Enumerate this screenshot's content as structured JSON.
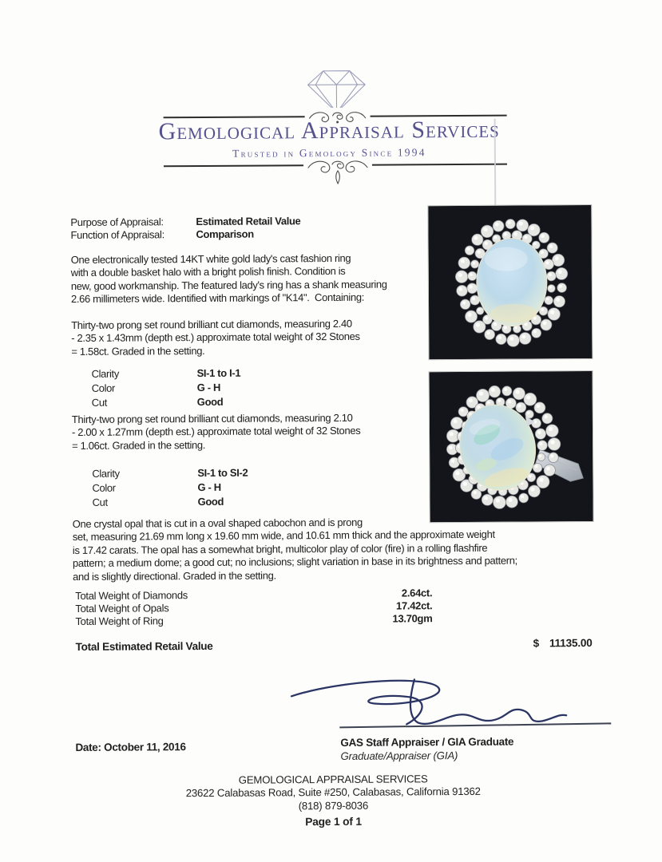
{
  "header": {
    "brand": "Gemological Appraisal Services",
    "tagline": "Trusted in Gemology Since 1994"
  },
  "appraisal": {
    "purpose_label": "Purpose of Appraisal:",
    "purpose_value": "Estimated Retail Value",
    "function_label": "Function of Appraisal:",
    "function_value": "Comparison",
    "intro": "One electronically tested 14KT white gold lady's cast fashion ring\nwith a double basket halo with a bright polish finish. Condition is\nnew, good workmanship. The featured lady's ring has a shank measuring\n2.66 millimeters wide. Identified with markings of \"K14\".  Containing:",
    "diamond_groups": [
      {
        "paragraph": "Thirty-two prong set round brilliant cut diamonds, measuring 2.40\n- 2.35 x 1.43mm (depth est.) approximate total weight of 32 Stones\n= 1.58ct. Graded in the setting.",
        "grading": [
          {
            "label": "Clarity",
            "value": "SI-1 to I-1"
          },
          {
            "label": "Color",
            "value": "G - H"
          },
          {
            "label": "Cut",
            "value": "Good"
          }
        ]
      },
      {
        "paragraph": "Thirty-two prong set round brilliant cut diamonds, measuring 2.10\n- 2.00 x 1.27mm (depth est.) approximate total weight of 32 Stones\n= 1.06ct. Graded in the setting.",
        "grading": [
          {
            "label": "Clarity",
            "value": "SI-1 to SI-2"
          },
          {
            "label": "Color",
            "value": "G - H"
          },
          {
            "label": "Cut",
            "value": "Good"
          }
        ]
      }
    ],
    "opal_description": "One crystal opal that is cut in a oval shaped cabochon and is prong\nset, measuring 21.69 mm long x 19.60 mm wide, and 10.61 mm thick and the approximate weight\nis 17.42 carats. The opal has a somewhat bright, multicolor play of color (fire) in a rolling flashfire\npattern; a medium dome; a good cut; no inclusions; slight variation in base in its brightness and pattern;\nand is slightly directional. Graded in the setting."
  },
  "totals": {
    "rows": [
      {
        "label": "Total Weight of Diamonds",
        "value": "2.64ct."
      },
      {
        "label": "Total Weight of Opals",
        "value": "17.42ct."
      },
      {
        "label": "Total Weight of Ring",
        "value": "13.70gm"
      }
    ],
    "retail_label": "Total Estimated Retail Value",
    "retail_currency": "$",
    "retail_amount": "11135.00"
  },
  "signature": {
    "date": "Date: October 11, 2016",
    "appraiser_title": "GAS Staff Appraiser / GIA Graduate",
    "appraiser_credential": "Graduate/Appraiser (GIA)"
  },
  "footer": {
    "company": "GEMOLOGICAL APPRAISAL SERVICES",
    "address": "23622 Calabasas Road, Suite #250, Calabasas, California 91362",
    "phone": "(818) 879-8036",
    "page": "Page 1 of 1"
  },
  "colors": {
    "brand_purple": "#55518e",
    "ink": "#1f1f1f",
    "signature_ink": "#2b3564",
    "photo_background": "#13151a"
  }
}
